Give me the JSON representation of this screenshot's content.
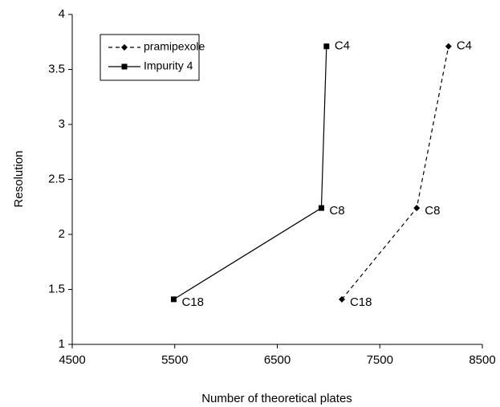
{
  "chart_data": {
    "type": "line",
    "x_label": "Number of theoretical plates",
    "y_label": "Resolution",
    "xlim": [
      4500,
      8500
    ],
    "xticks": [
      4500,
      5500,
      6500,
      7500,
      8500
    ],
    "ylim": [
      1,
      4
    ],
    "yticks": [
      1,
      1.5,
      2,
      2.5,
      3,
      3.5,
      4
    ],
    "grid": false,
    "legend": "upper left",
    "series": [
      {
        "name": "pramipexole",
        "color": "#000000",
        "marker": "diamond",
        "line_style": "dashed",
        "x": [
          7130,
          7860,
          8170
        ],
        "values": [
          1.41,
          2.24,
          3.71
        ],
        "labels": [
          "C18",
          "C8",
          "C4"
        ]
      },
      {
        "name": "Impurity 4",
        "color": "#000000",
        "marker": "square",
        "line_style": "solid",
        "x": [
          5490,
          6930,
          6980
        ],
        "values": [
          1.41,
          2.24,
          3.71
        ],
        "labels": [
          "C18",
          "C8",
          "C4"
        ]
      }
    ]
  }
}
